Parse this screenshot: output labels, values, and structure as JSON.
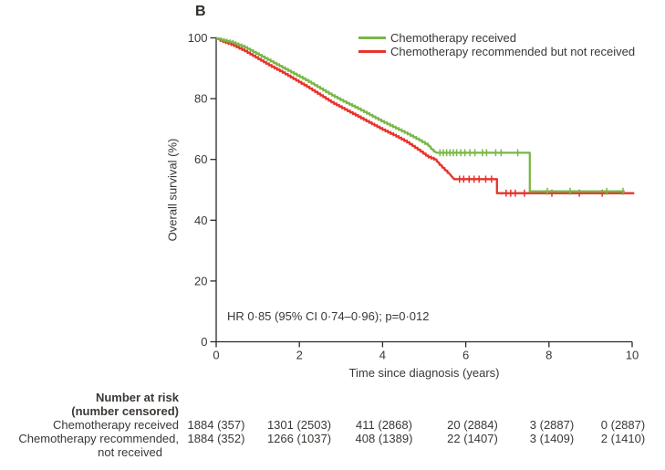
{
  "chart_data": {
    "type": "line",
    "subtype": "kaplan-meier-step",
    "title": "B",
    "xlabel": "Time since diagnosis (years)",
    "ylabel": "Overall survival (%)",
    "xlim": [
      0,
      10
    ],
    "ylim": [
      0,
      100
    ],
    "xticks": [
      0,
      2,
      4,
      6,
      8,
      10
    ],
    "yticks": [
      0,
      20,
      40,
      60,
      80,
      100
    ],
    "grid": false,
    "legend_position": "top-right-inside",
    "annotation": "HR 0·85 (95% CI 0·74–0·96); p=0·012",
    "axis_color": "#2a2a2a",
    "text_color": "#3b3734",
    "series": [
      {
        "name": "Chemotherapy received",
        "color": "#7AB648",
        "points": [
          [
            0,
            100
          ],
          [
            0.15,
            99.4
          ],
          [
            0.4,
            98.6
          ],
          [
            0.7,
            97.0
          ],
          [
            1.0,
            94.8
          ],
          [
            1.3,
            92.6
          ],
          [
            1.6,
            90.4
          ],
          [
            1.9,
            88.2
          ],
          [
            2.2,
            86.0
          ],
          [
            2.5,
            83.6
          ],
          [
            2.8,
            81.2
          ],
          [
            3.1,
            79.0
          ],
          [
            3.4,
            77.0
          ],
          [
            3.7,
            74.8
          ],
          [
            4.0,
            72.6
          ],
          [
            4.3,
            70.6
          ],
          [
            4.6,
            68.6
          ],
          [
            4.9,
            66.4
          ],
          [
            5.1,
            64.8
          ],
          [
            5.2,
            63.2
          ],
          [
            5.3,
            62.2
          ],
          [
            7.54,
            62.2
          ],
          [
            7.54,
            49.5
          ],
          [
            9.82,
            49.5
          ]
        ],
        "dense_censoring": {
          "from": 0.12,
          "to": 5.3,
          "step": 0.07
        },
        "censor_ticks": [
          5.38,
          5.46,
          5.54,
          5.62,
          5.7,
          5.78,
          5.88,
          5.98,
          6.1,
          6.22,
          6.4,
          6.5,
          6.72,
          6.85,
          7.25,
          7.96,
          8.51,
          9.39,
          9.78
        ]
      },
      {
        "name": "Chemotherapy recommended but not received",
        "color": "#E6332B",
        "points": [
          [
            0,
            100
          ],
          [
            0.15,
            99.0
          ],
          [
            0.4,
            97.8
          ],
          [
            0.7,
            95.8
          ],
          [
            1.0,
            93.4
          ],
          [
            1.3,
            91.0
          ],
          [
            1.6,
            88.8
          ],
          [
            1.9,
            86.4
          ],
          [
            2.2,
            84.0
          ],
          [
            2.5,
            81.4
          ],
          [
            2.8,
            78.8
          ],
          [
            3.1,
            76.6
          ],
          [
            3.4,
            74.4
          ],
          [
            3.7,
            72.2
          ],
          [
            4.0,
            70.0
          ],
          [
            4.3,
            68.0
          ],
          [
            4.6,
            65.8
          ],
          [
            4.9,
            63.0
          ],
          [
            5.1,
            61.0
          ],
          [
            5.28,
            60.0
          ],
          [
            5.35,
            58.8
          ],
          [
            5.48,
            57.0
          ],
          [
            5.6,
            55.4
          ],
          [
            5.72,
            53.5
          ],
          [
            6.75,
            53.5
          ],
          [
            6.75,
            48.9
          ],
          [
            10.05,
            48.9
          ]
        ],
        "dense_censoring": {
          "from": 0.1,
          "to": 5.6,
          "step": 0.065
        },
        "censor_ticks": [
          5.85,
          5.95,
          6.08,
          6.2,
          6.32,
          6.48,
          6.62,
          6.97,
          7.08,
          7.19,
          7.41,
          8.07,
          8.73,
          9.28
        ]
      }
    ],
    "risk_table": {
      "header": [
        "Number at risk",
        "(number censored)"
      ],
      "time_points": [
        0,
        2,
        4,
        6,
        8,
        10
      ],
      "rows": [
        {
          "label_lines": [
            "Chemotherapy received"
          ],
          "values": [
            "1884 (357)",
            "1301 (2503)",
            "411 (2868)",
            "20 (2884)",
            "3 (2887)",
            "0 (2887)"
          ]
        },
        {
          "label_lines": [
            "Chemotherapy recommended,",
            "not received"
          ],
          "values": [
            "1884 (352)",
            "1266 (1037)",
            "408 (1389)",
            "22 (1407)",
            "3 (1409)",
            "2 (1410)"
          ]
        }
      ]
    }
  }
}
